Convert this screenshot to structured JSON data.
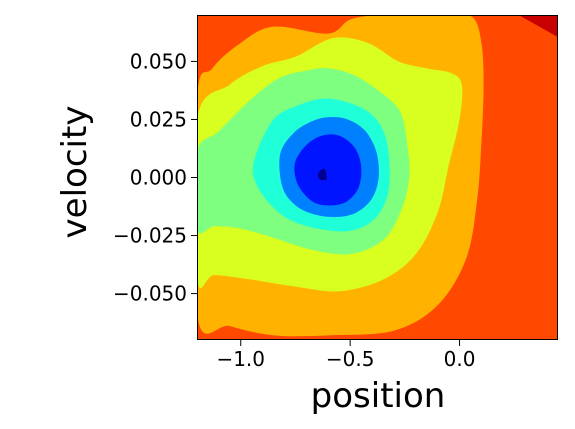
{
  "chart_data": {
    "type": "contour",
    "title": "",
    "xlabel": "position",
    "ylabel": "velocity",
    "xlim": [
      -1.2,
      0.45
    ],
    "ylim": [
      -0.07,
      0.07
    ],
    "x_ticks": [
      {
        "value": -1.0,
        "label": "−1.0"
      },
      {
        "value": -0.5,
        "label": "−0.5"
      },
      {
        "value": 0.0,
        "label": "0.0"
      }
    ],
    "y_ticks": [
      {
        "value": 0.05,
        "label": "0.050"
      },
      {
        "value": 0.025,
        "label": "0.025"
      },
      {
        "value": 0.0,
        "label": "0.000"
      },
      {
        "value": -0.025,
        "label": "−0.025"
      },
      {
        "value": -0.05,
        "label": "−0.050"
      }
    ],
    "colormap": "jet",
    "background_color": "#ff4800",
    "max_corner": {
      "color": "#c80000",
      "x_range": [
        0.27,
        0.45
      ],
      "y_range": [
        0.06,
        0.07
      ]
    },
    "contour_levels": [
      {
        "level": 1,
        "color": "#ffb300",
        "points": [
          [
            -1.2,
            0.033
          ],
          [
            -1.13,
            0.047
          ],
          [
            -1.0,
            0.058
          ],
          [
            -0.85,
            0.065
          ],
          [
            -0.6,
            0.062
          ],
          [
            -0.5,
            0.068
          ],
          [
            -0.35,
            0.07
          ],
          [
            -0.05,
            0.07
          ],
          [
            0.06,
            0.069
          ],
          [
            0.1,
            0.058
          ],
          [
            0.11,
            0.04
          ],
          [
            0.1,
            0.015
          ],
          [
            0.08,
            -0.01
          ],
          [
            0.03,
            -0.035
          ],
          [
            -0.1,
            -0.055
          ],
          [
            -0.3,
            -0.066
          ],
          [
            -0.6,
            -0.068
          ],
          [
            -0.85,
            -0.068
          ],
          [
            -1.05,
            -0.064
          ],
          [
            -1.2,
            -0.059
          ]
        ]
      },
      {
        "level": 2,
        "color": "#d8ff1f",
        "points": [
          [
            -1.2,
            0.025
          ],
          [
            -1.05,
            0.04
          ],
          [
            -0.9,
            0.048
          ],
          [
            -0.75,
            0.052
          ],
          [
            -0.58,
            0.06
          ],
          [
            -0.42,
            0.058
          ],
          [
            -0.28,
            0.05
          ],
          [
            -0.15,
            0.047
          ],
          [
            -0.04,
            0.045
          ],
          [
            0.01,
            0.04
          ],
          [
            0.0,
            0.025
          ],
          [
            -0.05,
            0.005
          ],
          [
            -0.1,
            -0.015
          ],
          [
            -0.2,
            -0.033
          ],
          [
            -0.35,
            -0.044
          ],
          [
            -0.55,
            -0.049
          ],
          [
            -0.75,
            -0.047
          ],
          [
            -0.95,
            -0.044
          ],
          [
            -1.12,
            -0.042
          ],
          [
            -1.2,
            -0.043
          ]
        ]
      },
      {
        "level": 3,
        "color": "#7fff7f",
        "points": [
          [
            -1.2,
            0.011
          ],
          [
            -1.1,
            0.02
          ],
          [
            -0.95,
            0.034
          ],
          [
            -0.82,
            0.043
          ],
          [
            -0.7,
            0.046
          ],
          [
            -0.6,
            0.047
          ],
          [
            -0.48,
            0.044
          ],
          [
            -0.35,
            0.036
          ],
          [
            -0.27,
            0.028
          ],
          [
            -0.24,
            0.015
          ],
          [
            -0.23,
            0.0
          ],
          [
            -0.27,
            -0.015
          ],
          [
            -0.35,
            -0.027
          ],
          [
            -0.5,
            -0.033
          ],
          [
            -0.68,
            -0.031
          ],
          [
            -0.85,
            -0.026
          ],
          [
            -1.0,
            -0.022
          ],
          [
            -1.12,
            -0.021
          ],
          [
            -1.2,
            -0.022
          ]
        ]
      },
      {
        "level": 4,
        "color": "#1fffd8",
        "points": [
          [
            -0.93,
            0.01
          ],
          [
            -0.85,
            0.025
          ],
          [
            -0.74,
            0.031
          ],
          [
            -0.62,
            0.034
          ],
          [
            -0.5,
            0.032
          ],
          [
            -0.4,
            0.027
          ],
          [
            -0.34,
            0.018
          ],
          [
            -0.32,
            0.005
          ],
          [
            -0.33,
            -0.008
          ],
          [
            -0.39,
            -0.018
          ],
          [
            -0.5,
            -0.023
          ],
          [
            -0.65,
            -0.022
          ],
          [
            -0.78,
            -0.018
          ],
          [
            -0.88,
            -0.01
          ],
          [
            -0.94,
            0.0
          ]
        ]
      },
      {
        "level": 5,
        "color": "#0080ff",
        "points": [
          [
            -0.82,
            0.01
          ],
          [
            -0.76,
            0.019
          ],
          [
            -0.68,
            0.024
          ],
          [
            -0.6,
            0.026
          ],
          [
            -0.51,
            0.025
          ],
          [
            -0.43,
            0.02
          ],
          [
            -0.38,
            0.011
          ],
          [
            -0.37,
            0.0
          ],
          [
            -0.4,
            -0.009
          ],
          [
            -0.47,
            -0.015
          ],
          [
            -0.56,
            -0.017
          ],
          [
            -0.66,
            -0.016
          ],
          [
            -0.75,
            -0.012
          ],
          [
            -0.81,
            -0.004
          ]
        ]
      },
      {
        "level": 6,
        "color": "#0014ff",
        "points": [
          [
            -0.75,
            0.007
          ],
          [
            -0.7,
            0.014
          ],
          [
            -0.63,
            0.018
          ],
          [
            -0.55,
            0.018
          ],
          [
            -0.48,
            0.013
          ],
          [
            -0.45,
            0.005
          ],
          [
            -0.46,
            -0.004
          ],
          [
            -0.51,
            -0.01
          ],
          [
            -0.58,
            -0.012
          ],
          [
            -0.66,
            -0.011
          ],
          [
            -0.72,
            -0.006
          ],
          [
            -0.75,
            0.0
          ]
        ]
      },
      {
        "level": 7,
        "color": "#000090",
        "points": [
          [
            -0.645,
            0.002
          ],
          [
            -0.63,
            0.0035
          ],
          [
            -0.615,
            0.0035
          ],
          [
            -0.607,
            0.0
          ],
          [
            -0.612,
            -0.001
          ],
          [
            -0.632,
            -0.001
          ],
          [
            -0.645,
            0.0
          ]
        ]
      }
    ]
  }
}
